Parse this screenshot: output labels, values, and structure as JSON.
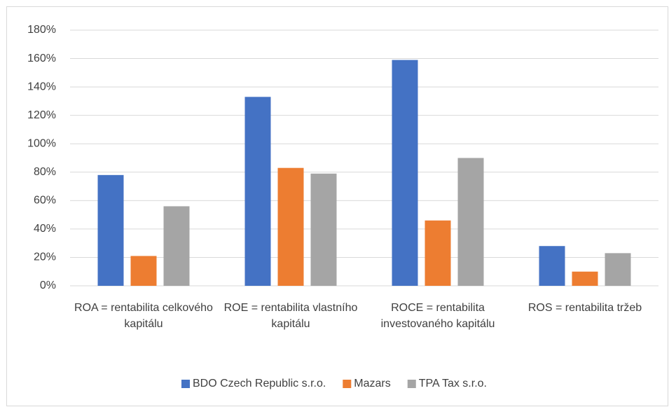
{
  "chart_data": {
    "type": "bar",
    "categories": [
      "ROA = rentabilita celkového kapitálu",
      "ROE = rentabilita vlastního kapitálu",
      "ROCE = rentabilita investovaného kapitálu",
      "ROS = rentabilita tržeb"
    ],
    "series": [
      {
        "name": "BDO Czech Republic s.r.o.",
        "color": "#4472c4",
        "values": [
          78,
          133,
          159,
          28
        ]
      },
      {
        "name": "Mazars",
        "color": "#ed7d31",
        "values": [
          21,
          83,
          46,
          10
        ]
      },
      {
        "name": "TPA Tax s.r.o.",
        "color": "#a5a5a5",
        "values": [
          56,
          79,
          90,
          23
        ]
      }
    ],
    "ylim": [
      0,
      180
    ],
    "yticks": [
      {
        "value": 0,
        "label": "0%"
      },
      {
        "value": 20,
        "label": "20%"
      },
      {
        "value": 40,
        "label": "40%"
      },
      {
        "value": 60,
        "label": "60%"
      },
      {
        "value": 80,
        "label": "80%"
      },
      {
        "value": 100,
        "label": "100%"
      },
      {
        "value": 120,
        "label": "120%"
      },
      {
        "value": 140,
        "label": "140%"
      },
      {
        "value": 160,
        "label": "160%"
      },
      {
        "value": 180,
        "label": "180%"
      }
    ],
    "grid": true,
    "legend": "bottom"
  }
}
